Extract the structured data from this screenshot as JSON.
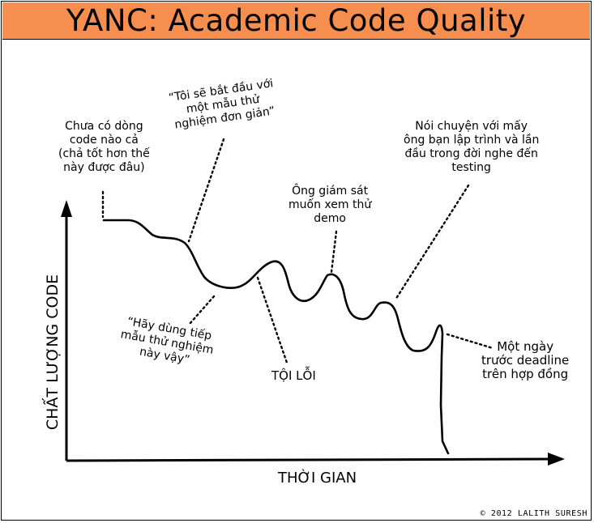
{
  "title": "YANC: Academic Code Quality",
  "credit": "© 2012 LALITH SURESH",
  "colors": {
    "title_bar": "#f58e4e",
    "ink": "#000000"
  },
  "chart_data": {
    "type": "line",
    "xlabel": "THỜI GIAN",
    "ylabel": "CHẤT LƯỢNG CODE",
    "annotations": [
      "Chưa có dòng\ncode nào cả\n(chả tốt hơn thế\nnày được đâu)",
      "“Tôi sẽ bắt đầu với\nmột mẫu thử\nnghiệm đơn giản”",
      "“Hãy dùng tiếp\nmẫu thử nghiệm\nnày vậy”",
      "TỘI LỖI",
      "Ông giám sát\nmuốn xem thử\ndemo",
      "Nói chuyện với mấy\nông bạn lập trình và lần\nđầu trong đời nghe đến\ntesting",
      "Một ngày\ntrước deadline\ntrên hợp đồng"
    ]
  }
}
